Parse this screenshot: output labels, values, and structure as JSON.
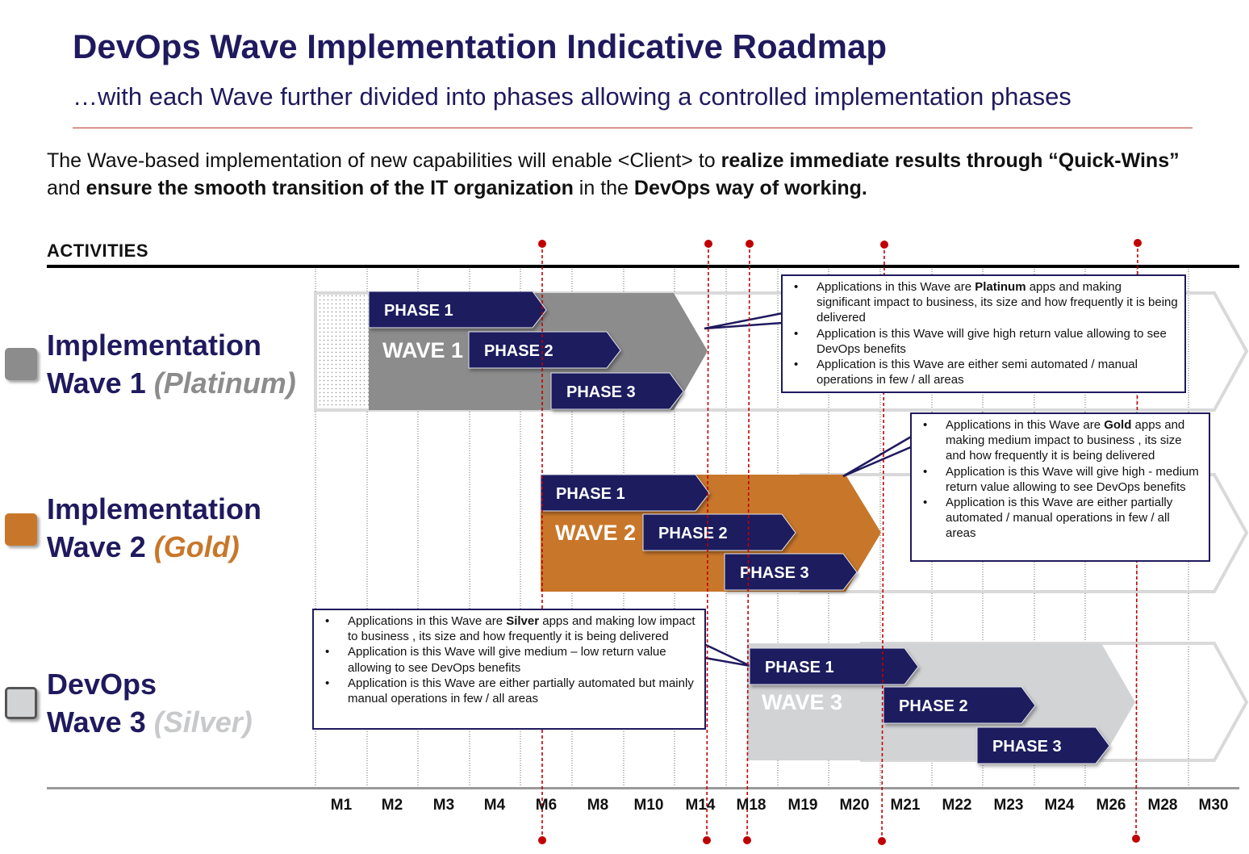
{
  "header": {
    "title": "DevOps Wave Implementation Indicative Roadmap",
    "subtitle": "…with each Wave further divided into phases allowing a controlled implementation phases"
  },
  "intro": {
    "p1": "The Wave-based implementation of new capabilities will enable <Client> to ",
    "b1": "realize immediate results through “Quick-Wins”",
    "p2": " and ",
    "b2": "ensure the smooth transition of the IT organization",
    "p3": " in the ",
    "b3": "DevOps way of working."
  },
  "activities_label": "ACTIVITIES",
  "months": [
    "M1",
    "M2",
    "M3",
    "M4",
    "M6",
    "M8",
    "M10",
    "M14",
    "M18",
    "M19",
    "M20",
    "M21",
    "M22",
    "M23",
    "M24",
    "M26",
    "M28",
    "M30"
  ],
  "colors": {
    "navy": "#1f1a5e",
    "wave1": "#8c8c8c",
    "wave2": "#c8772a",
    "wave3": "#d2d3d5",
    "milestone": "#c00000"
  },
  "waves": [
    {
      "line1": "Implementation",
      "line2": "Wave 1",
      "tier": "(Platinum)",
      "tier_color": "#8c8c8c",
      "bar_label": "WAVE 1",
      "phases": [
        "PHASE 1",
        "PHASE  2",
        "PHASE 3"
      ],
      "callout": [
        {
          "pre": "Applications in this Wave are ",
          "bold": "Platinum",
          "post": " apps and making significant impact to business, its size and how frequently it is being delivered"
        },
        {
          "pre": "Application is this Wave will give high return value allowing to see DevOps benefits",
          "bold": "",
          "post": ""
        },
        {
          "pre": "Application is this Wave are either semi automated / manual operations in few / all areas",
          "bold": "",
          "post": ""
        }
      ]
    },
    {
      "line1": "Implementation",
      "line2": "Wave 2",
      "tier": "(Gold)",
      "tier_color": "#c8772a",
      "bar_label": "WAVE 2",
      "phases": [
        "PHASE 1",
        "PHASE 2",
        "PHASE 3"
      ],
      "callout": [
        {
          "pre": "Applications in this Wave are ",
          "bold": "Gold",
          "post": " apps and making medium impact to business , its size and how frequently it is being delivered"
        },
        {
          "pre": "Application is this Wave will give high - medium return value allowing to see DevOps benefits",
          "bold": "",
          "post": ""
        },
        {
          "pre": "Application is this Wave are either partially automated / manual operations in few / all areas",
          "bold": "",
          "post": ""
        }
      ]
    },
    {
      "line1": "DevOps",
      "line2": "Wave 3",
      "tier": "(Silver)",
      "tier_color": "#c8c9cb",
      "bar_label": "WAVE 3",
      "phases": [
        "PHASE 1",
        "PHASE 2",
        "PHASE 3"
      ],
      "callout": [
        {
          "pre": "Applications in this Wave are ",
          "bold": "Silver",
          "post": " apps and making low impact to business , its size and how frequently it is being delivered"
        },
        {
          "pre": "Application is this Wave will give medium – low return value allowing to see DevOps benefits",
          "bold": "",
          "post": ""
        },
        {
          "pre": "Application is this Wave are either partially automated but mainly manual operations in few / all areas",
          "bold": "",
          "post": ""
        }
      ]
    }
  ]
}
